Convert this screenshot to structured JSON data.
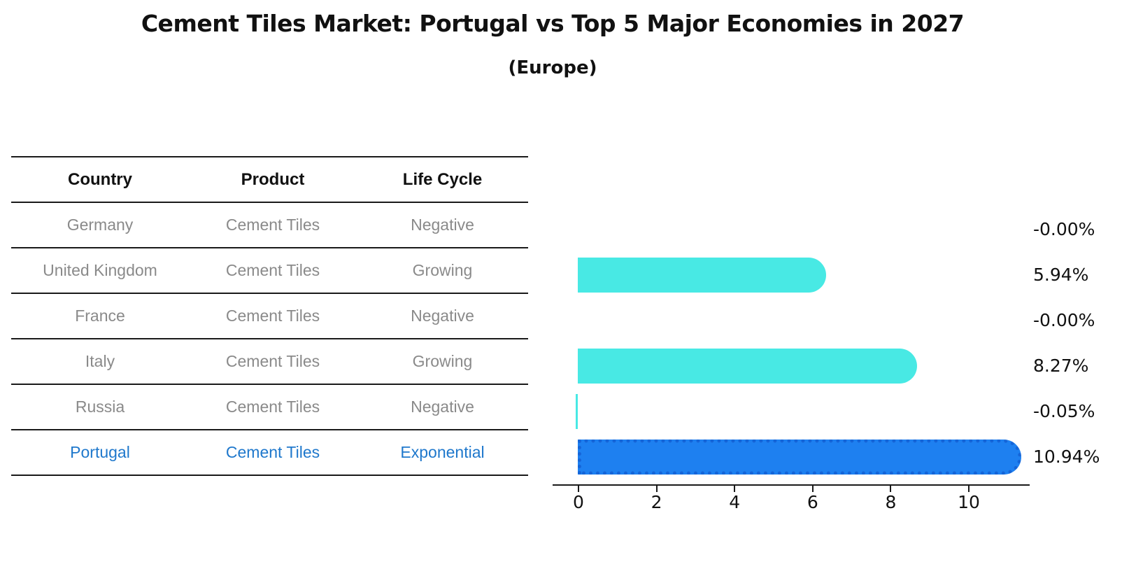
{
  "title": "Cement Tiles Market: Portugal vs Top 5 Major Economies in 2027",
  "subtitle": "(Europe)",
  "table": {
    "headers": [
      "Country",
      "Product",
      "Life Cycle"
    ],
    "rows": [
      {
        "country": "Germany",
        "product": "Cement Tiles",
        "life_cycle": "Negative",
        "highlight": false
      },
      {
        "country": "United Kingdom",
        "product": "Cement Tiles",
        "life_cycle": "Growing",
        "highlight": false
      },
      {
        "country": "France",
        "product": "Cement Tiles",
        "life_cycle": "Negative",
        "highlight": false
      },
      {
        "country": "Italy",
        "product": "Cement Tiles",
        "life_cycle": "Growing",
        "highlight": false
      },
      {
        "country": "Russia",
        "product": "Cement Tiles",
        "life_cycle": "Negative",
        "highlight": false
      },
      {
        "country": "Portugal",
        "product": "Cement Tiles",
        "life_cycle": "Exponential",
        "highlight": true
      }
    ]
  },
  "chart_data": {
    "type": "bar",
    "orientation": "horizontal",
    "title": "Cement Tiles Market: Portugal vs Top 5 Major Economies in 2027",
    "subtitle": "(Europe)",
    "categories": [
      "Germany",
      "United Kingdom",
      "France",
      "Italy",
      "Russia",
      "Portugal"
    ],
    "values": [
      -0.0,
      5.94,
      -0.0,
      8.27,
      -0.05,
      10.94
    ],
    "value_labels": [
      "-0.00%",
      "5.94%",
      "-0.00%",
      "8.27%",
      "-0.05%",
      "10.94%"
    ],
    "unit": "%",
    "x_tick_values": [
      0,
      2,
      4,
      6,
      8,
      10
    ],
    "x_tick_labels": [
      "0",
      "2",
      "4",
      "6",
      "8",
      "10"
    ],
    "xlim": [
      -0.7,
      11.6
    ],
    "grid": false,
    "legend": false,
    "bar_color": "#48E9E4",
    "highlight_index": 5,
    "highlight_color": "#1E80F0",
    "highlight_border_color": "#1565D8",
    "highlight_border_style": "dotted"
  },
  "colors": {
    "background": "#FFFFFF",
    "text": "#111111",
    "muted_text": "#8A8A8A",
    "highlight_text": "#1F78CC",
    "line": "#1A1A1A"
  }
}
